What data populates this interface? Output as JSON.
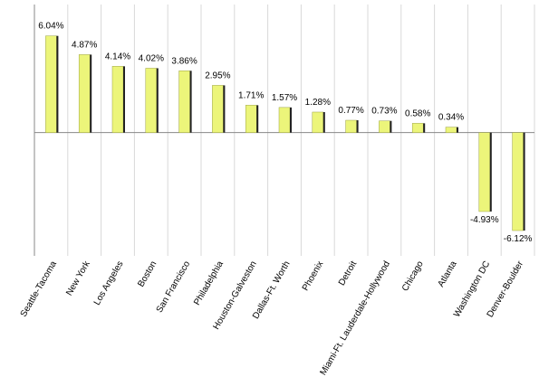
{
  "chart_data": {
    "type": "bar",
    "categories": [
      "Seattle-Tacoma",
      "New York",
      "Los Angeles",
      "Boston",
      "San Francisco",
      "Philadelphia",
      "Houston-Galveston",
      "Dallas-Ft. Worth",
      "Phoenix",
      "Detroit",
      "Miami-Ft. Lauderdale-Hollywood",
      "Chicago",
      "Atlanta",
      "Washington DC",
      "Denver-Boulder"
    ],
    "values": [
      6.04,
      4.87,
      4.14,
      4.02,
      3.86,
      2.95,
      1.71,
      1.57,
      1.28,
      0.77,
      0.73,
      0.58,
      0.34,
      -4.93,
      -6.12
    ],
    "value_labels": [
      "6.04%",
      "4.87%",
      "4.14%",
      "4.02%",
      "3.86%",
      "2.95%",
      "1.71%",
      "1.57%",
      "1.28%",
      "0.77%",
      "0.73%",
      "0.58%",
      "0.34%",
      "-4.93%",
      "-6.12%"
    ],
    "color": "#ecf57a",
    "ylim": [
      -7.7,
      8
    ]
  }
}
